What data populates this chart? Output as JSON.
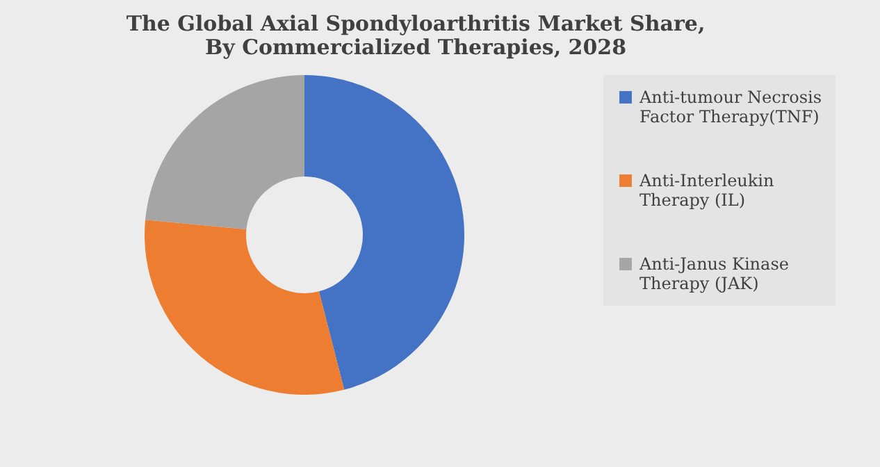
{
  "chart_data": {
    "type": "donut",
    "title": [
      "The Global Axial Spondyloarthritis Market Share,",
      "By Commercialized Therapies, 2028"
    ],
    "categories": [
      "Anti-tumour Necrosis Factor Therapy(TNF)",
      "Anti-Interleukin Therapy (IL)",
      "Anti-Janus Kinase Therapy (JAK)"
    ],
    "values": [
      46,
      30.5,
      23.5
    ],
    "colors": [
      "#4472c4",
      "#ed7d31",
      "#a5a5a5"
    ],
    "legend": "right"
  }
}
